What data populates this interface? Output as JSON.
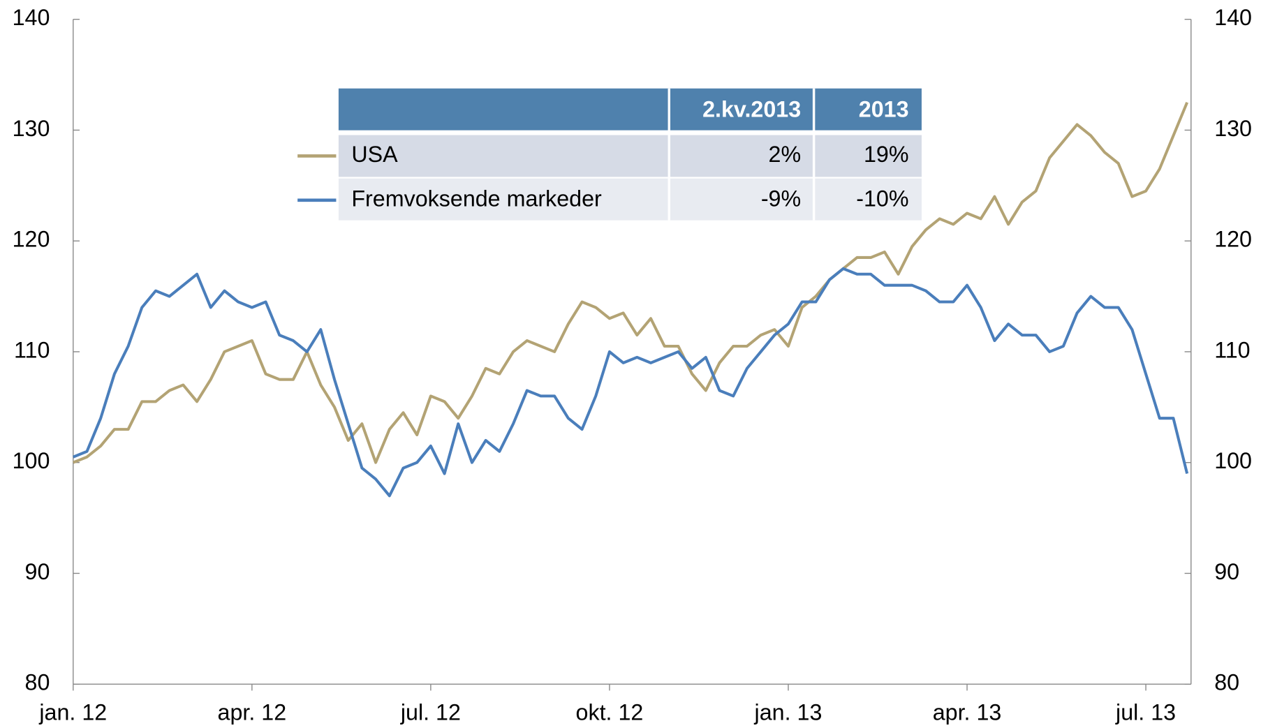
{
  "chart_data": {
    "type": "line",
    "categories": [
      "jan. 12",
      null,
      null,
      null,
      null,
      null,
      null,
      null,
      null,
      null,
      null,
      null,
      null,
      "apr. 12",
      null,
      null,
      null,
      null,
      null,
      null,
      null,
      null,
      null,
      null,
      null,
      null,
      "jul. 12",
      null,
      null,
      null,
      null,
      null,
      null,
      null,
      null,
      null,
      null,
      null,
      null,
      "okt. 12",
      null,
      null,
      null,
      null,
      null,
      null,
      null,
      null,
      null,
      null,
      null,
      null,
      "jan. 13",
      null,
      null,
      null,
      null,
      null,
      null,
      null,
      null,
      null,
      null,
      null,
      null,
      "apr. 13",
      null,
      null,
      null,
      null,
      null,
      null,
      null,
      null,
      null,
      null,
      null,
      null,
      "jul. 13",
      null,
      null,
      null
    ],
    "series": [
      {
        "name": "USA",
        "color": "#b3a374",
        "values": [
          100,
          100.5,
          101.5,
          103,
          103,
          105.5,
          105.5,
          106.5,
          107,
          105.5,
          107.5,
          110,
          110.5,
          111,
          108,
          107.5,
          107.5,
          110,
          107,
          105,
          102,
          103.5,
          100,
          103,
          104.5,
          102.5,
          106,
          105.5,
          104,
          106,
          108.5,
          108,
          110,
          111,
          110.5,
          110,
          112.5,
          114.5,
          114,
          113,
          113.5,
          111.5,
          113,
          110.5,
          110.5,
          108,
          106.5,
          109,
          110.5,
          110.5,
          111.5,
          112,
          110.5,
          114,
          115,
          116.5,
          117.5,
          118.5,
          118.5,
          119,
          117,
          119.5,
          121,
          122,
          121.5,
          122.5,
          122,
          124,
          121.5,
          123.5,
          124.5,
          127.5,
          129,
          130.5,
          129.5,
          128,
          127,
          124,
          124.5,
          126.5,
          129.5,
          132.5
        ]
      },
      {
        "name": "Fremvoksende markeder",
        "color": "#4a7ebb",
        "values": [
          100.5,
          101,
          104,
          108,
          110.5,
          114,
          115.5,
          115,
          116,
          117,
          114,
          115.5,
          114.5,
          114,
          114.5,
          111.5,
          111,
          110,
          112,
          107.5,
          103.5,
          99.5,
          98.5,
          97,
          99.5,
          100,
          101.5,
          99,
          103.5,
          100,
          102,
          101,
          103.5,
          106.5,
          106,
          106,
          104,
          103,
          106,
          110,
          109,
          109.5,
          109,
          109.5,
          110,
          108.5,
          109.5,
          106.5,
          106,
          108.5,
          110,
          111.5,
          112.5,
          114.5,
          114.5,
          116.5,
          117.5,
          117,
          117,
          116,
          116,
          116,
          115.5,
          114.5,
          114.5,
          116,
          114,
          111,
          112.5,
          111.5,
          111.5,
          110,
          110.5,
          113.5,
          115,
          114,
          114,
          112,
          108,
          104,
          104,
          99
        ]
      }
    ],
    "ylim": [
      80,
      140
    ],
    "yticks": [
      80,
      90,
      100,
      110,
      120,
      130,
      140
    ],
    "table": {
      "columns": [
        "2.kv.2013",
        "2013"
      ],
      "rows": [
        [
          "2%",
          "19%"
        ],
        [
          "-9%",
          "-10%"
        ]
      ]
    }
  }
}
